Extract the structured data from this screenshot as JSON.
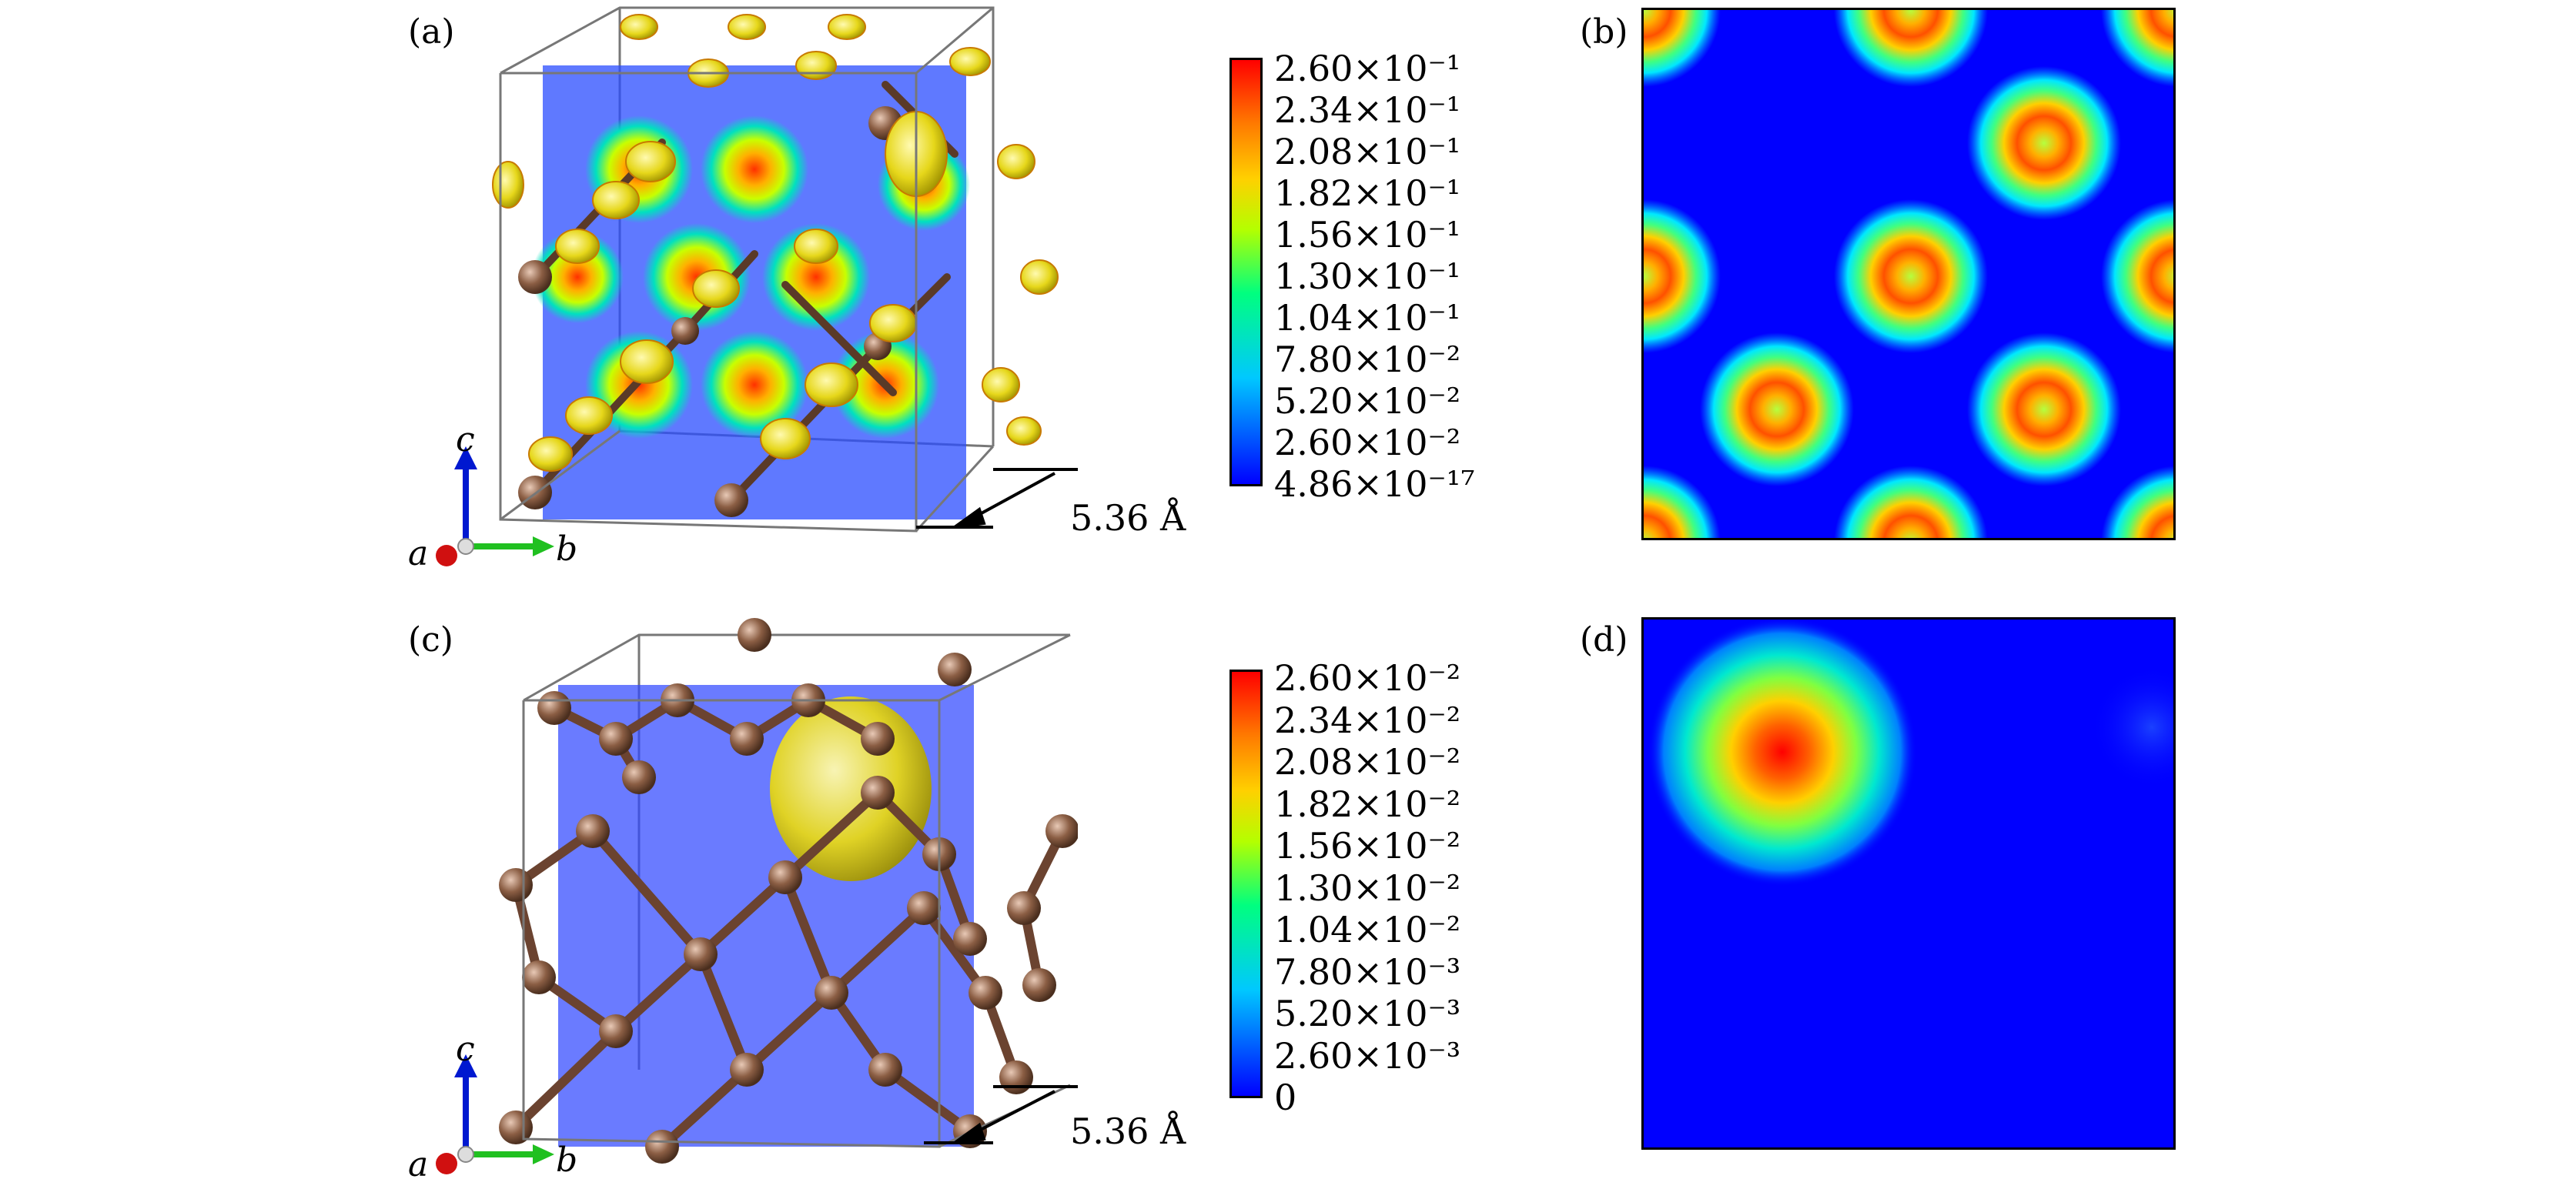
{
  "panels": {
    "a": {
      "label": "(a)"
    },
    "b": {
      "label": "(b)"
    },
    "c": {
      "label": "(c)"
    },
    "d": {
      "label": "(d)"
    }
  },
  "axes_indicator": {
    "c": "c",
    "a": "a",
    "b": "b"
  },
  "lattice_length": "5.36 Å",
  "colorbar_top": {
    "ticks": [
      "2.60×10⁻¹",
      "2.34×10⁻¹",
      "2.08×10⁻¹",
      "1.82×10⁻¹",
      "1.56×10⁻¹",
      "1.30×10⁻¹",
      "1.04×10⁻¹",
      "7.80×10⁻²",
      "5.20×10⁻²",
      "2.60×10⁻²",
      "4.86×10⁻¹⁷"
    ]
  },
  "colorbar_bottom": {
    "ticks": [
      "2.60×10⁻²",
      "2.34×10⁻²",
      "2.08×10⁻²",
      "1.82×10⁻²",
      "1.56×10⁻²",
      "1.30×10⁻²",
      "1.04×10⁻²",
      "7.80×10⁻³",
      "5.20×10⁻³",
      "2.60×10⁻³",
      "0"
    ]
  },
  "colormap": [
    "#0000ff",
    "#00c8ff",
    "#00ff7f",
    "#b4ff00",
    "#ffd000",
    "#ff7a00",
    "#ff0000"
  ],
  "atom_color": "#8b5e44",
  "isosurface_color": "#f0e020"
}
